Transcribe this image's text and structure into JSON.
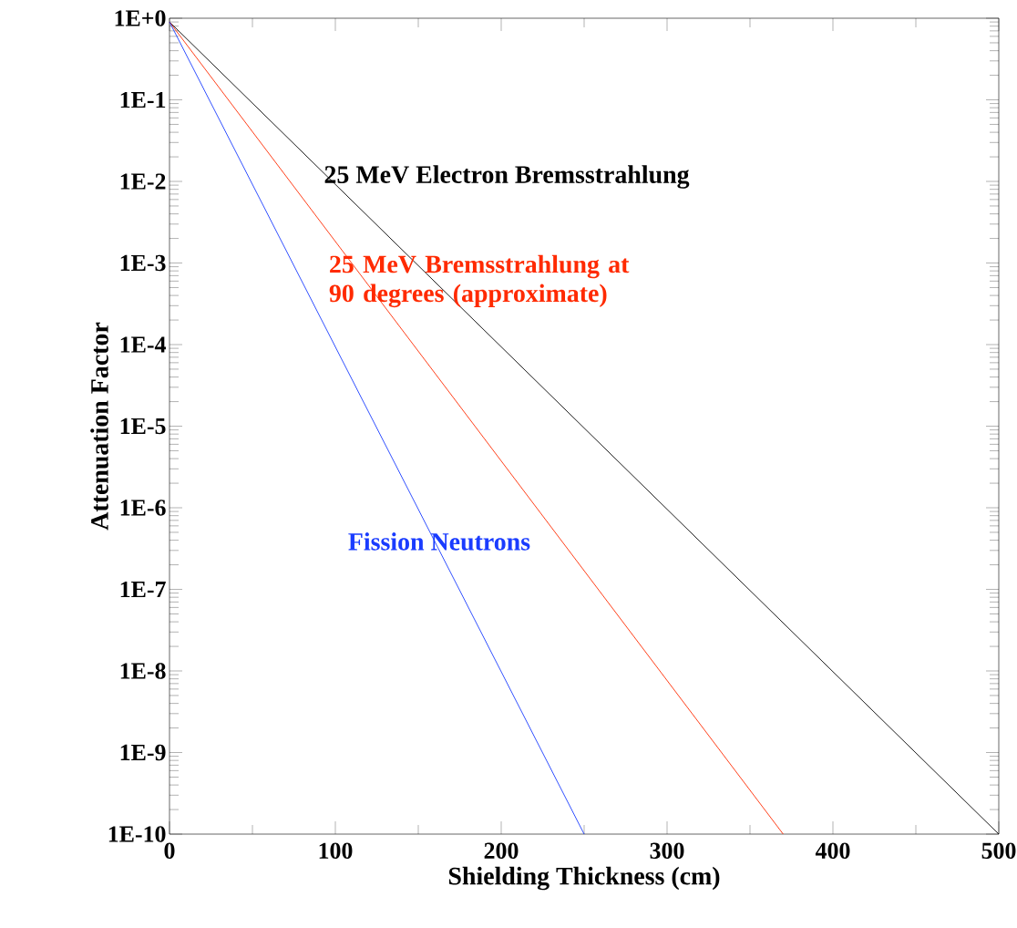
{
  "chart_data": {
    "type": "line",
    "xlabel": "Shielding Thickness (cm)",
    "ylabel": "Attenuation Factor",
    "xlim": [
      0,
      500
    ],
    "xticks": [
      0,
      100,
      200,
      300,
      400,
      500
    ],
    "ylim": [
      1e-10,
      1
    ],
    "log": "y",
    "yticks": [
      {
        "value": 1,
        "label": "1E+0"
      },
      {
        "value": 0.1,
        "label": "1E-1"
      },
      {
        "value": 0.01,
        "label": "1E-2"
      },
      {
        "value": 0.001,
        "label": "1E-3"
      },
      {
        "value": 0.0001,
        "label": "1E-4"
      },
      {
        "value": 1e-05,
        "label": "1E-5"
      },
      {
        "value": 1e-06,
        "label": "1E-6"
      },
      {
        "value": 1e-07,
        "label": "1E-7"
      },
      {
        "value": 1e-08,
        "label": "1E-8"
      },
      {
        "value": 1e-09,
        "label": "1E-9"
      },
      {
        "value": 1e-10,
        "label": "1E-10"
      }
    ],
    "series": [
      {
        "name": "25 MeV Electron Bremsstrahlung",
        "color": "#000000",
        "x": [
          0,
          500
        ],
        "values": [
          0.9,
          1e-10
        ]
      },
      {
        "name": "25 MeV Bremsstrahlung at 90 degrees (approximate)",
        "color": "#ff2a00",
        "x": [
          0,
          370
        ],
        "values": [
          0.9,
          1e-10
        ]
      },
      {
        "name": "Fission Neutrons",
        "color": "#1a3cff",
        "x": [
          0,
          250
        ],
        "values": [
          0.9,
          1e-10
        ]
      }
    ]
  }
}
